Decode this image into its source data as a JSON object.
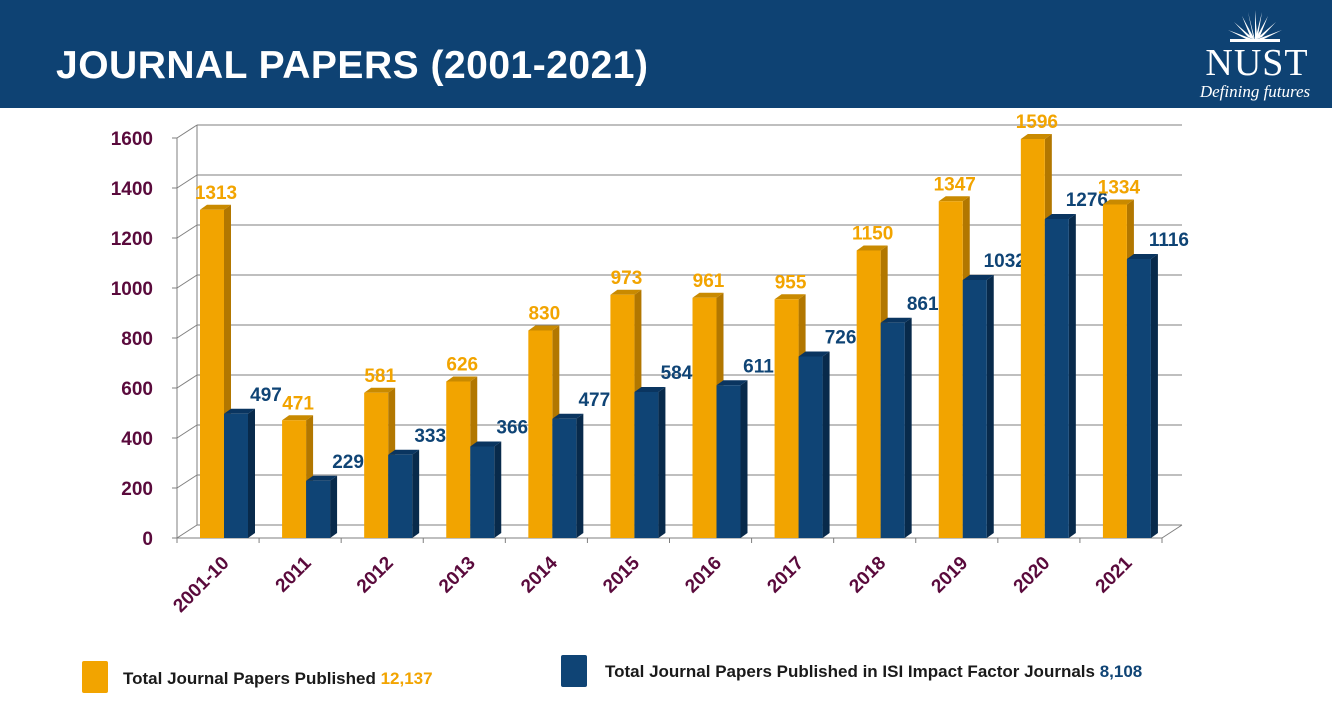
{
  "header": {
    "title": "JOURNAL PAPERS (2001-2021)",
    "logo_word": "NUST",
    "logo_tagline": "Defining futures"
  },
  "colors": {
    "header_bg": "#0e4273",
    "series_orange": "#f2a400",
    "series_blue": "#0f4475",
    "axis_text": "#5a0a3c"
  },
  "chart_data": {
    "type": "bar",
    "categories": [
      "2001-10",
      "2011",
      "2012",
      "2013",
      "2014",
      "2015",
      "2016",
      "2017",
      "2018",
      "2019",
      "2020",
      "2021"
    ],
    "series": [
      {
        "name": "Total Journal Papers Published",
        "values": [
          1313,
          471,
          581,
          626,
          830,
          973,
          961,
          955,
          1150,
          1347,
          1596,
          1334
        ]
      },
      {
        "name": "Total Journal Papers Published in ISI Impact Factor Journals",
        "values": [
          497,
          229,
          333,
          366,
          477,
          584,
          611,
          726,
          861,
          1032,
          1276,
          1116
        ]
      }
    ],
    "yticks": [
      "0",
      "200",
      "400",
      "600",
      "800",
      "1000",
      "1200",
      "1400",
      "1600"
    ],
    "ylim": [
      0,
      1600
    ],
    "grid": true,
    "legend_position": "bottom"
  },
  "legend": {
    "orange_label": "Total Journal Papers Published",
    "orange_total": "12,137",
    "blue_label": "Total Journal Papers Published in ISI Impact Factor Journals",
    "blue_total": "8,108"
  }
}
